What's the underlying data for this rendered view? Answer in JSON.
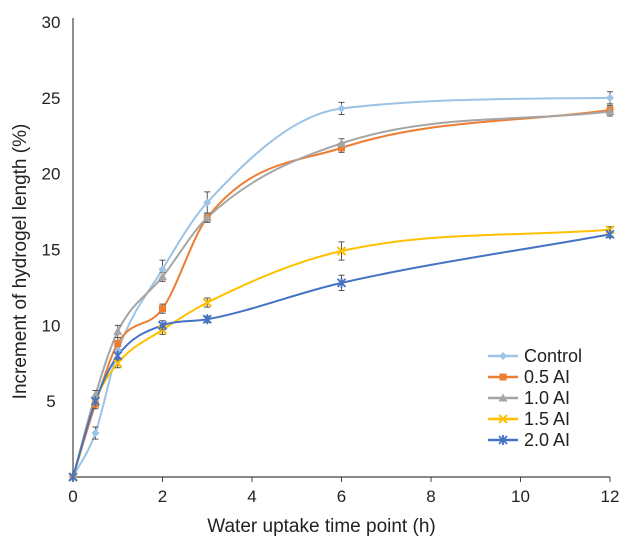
{
  "chart_data": {
    "type": "line",
    "xlabel": "Water uptake time point (h)",
    "ylabel": "Increment of hydrogel length (%)",
    "xlim": [
      0,
      12
    ],
    "ylim": [
      0,
      30
    ],
    "xticks": [
      0,
      2,
      4,
      6,
      8,
      10,
      12
    ],
    "yticks": [
      5,
      10,
      15,
      20,
      25,
      30
    ],
    "grid": false,
    "legend_position": "bottom-right",
    "x": [
      0,
      0.5,
      1,
      2,
      3,
      6,
      12
    ],
    "series": [
      {
        "name": "Control",
        "color": "#9dc3e6",
        "marker": "diamond",
        "values": [
          0,
          2.9,
          8.3,
          13.7,
          18.1,
          24.3,
          25.0
        ],
        "errors": [
          0,
          0.4,
          0.5,
          0.6,
          0.7,
          0.4,
          0.4
        ]
      },
      {
        "name": "0.5 AI",
        "color": "#ed7d31",
        "marker": "square",
        "values": [
          0,
          4.8,
          8.8,
          11.1,
          17.1,
          21.7,
          24.2
        ],
        "errors": [
          0,
          0.3,
          0.4,
          0.3,
          0.3,
          0.3,
          0.3
        ]
      },
      {
        "name": "1.0 AI",
        "color": "#a5a5a5",
        "marker": "triangle",
        "values": [
          0,
          5.4,
          9.6,
          13.2,
          17.1,
          22.0,
          24.1
        ],
        "errors": [
          0,
          0.3,
          0.4,
          0.3,
          0.3,
          0.3,
          0.3
        ]
      },
      {
        "name": "1.5 AI",
        "color": "#ffc000",
        "marker": "x",
        "values": [
          0,
          5.0,
          7.5,
          9.7,
          11.5,
          14.9,
          16.3
        ],
        "errors": [
          0,
          0.3,
          0.3,
          0.3,
          0.3,
          0.6,
          0.2
        ]
      },
      {
        "name": "2.0 AI",
        "color": "#4472c4",
        "marker": "star",
        "values": [
          0,
          5.0,
          8.0,
          10.0,
          10.4,
          12.8,
          16.0
        ],
        "errors": [
          0,
          0.3,
          0.3,
          0.3,
          0.2,
          0.5,
          0.2
        ]
      }
    ]
  }
}
